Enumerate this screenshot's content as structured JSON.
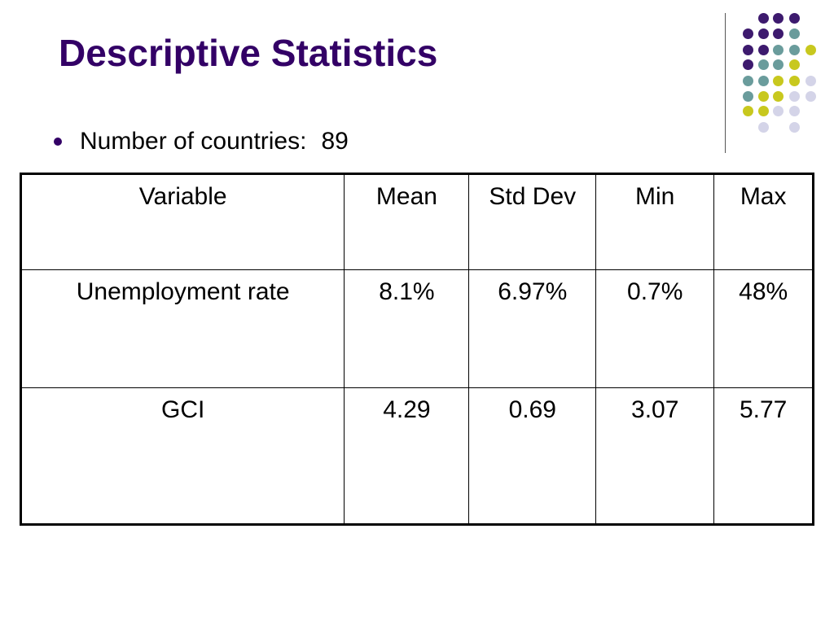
{
  "slide": {
    "title": "Descriptive Statistics",
    "bullet_label": "Number of countries:",
    "bullet_value": "89"
  },
  "table": {
    "headers": [
      "Variable",
      "Mean",
      "Std Dev",
      "Min",
      "Max"
    ],
    "rows": [
      [
        "Unemployment rate",
        "8.1%",
        "6.97%",
        "0.7%",
        "48%"
      ],
      [
        "GCI",
        "4.29",
        "0.69",
        "3.07",
        "5.77"
      ]
    ]
  },
  "theme": {
    "title_color": "#330066",
    "dot_colors": {
      "purple": "#3d1a6e",
      "teal": "#6a9c9c",
      "olive": "#c8c81e",
      "lavender": "#d4d4e8"
    }
  }
}
